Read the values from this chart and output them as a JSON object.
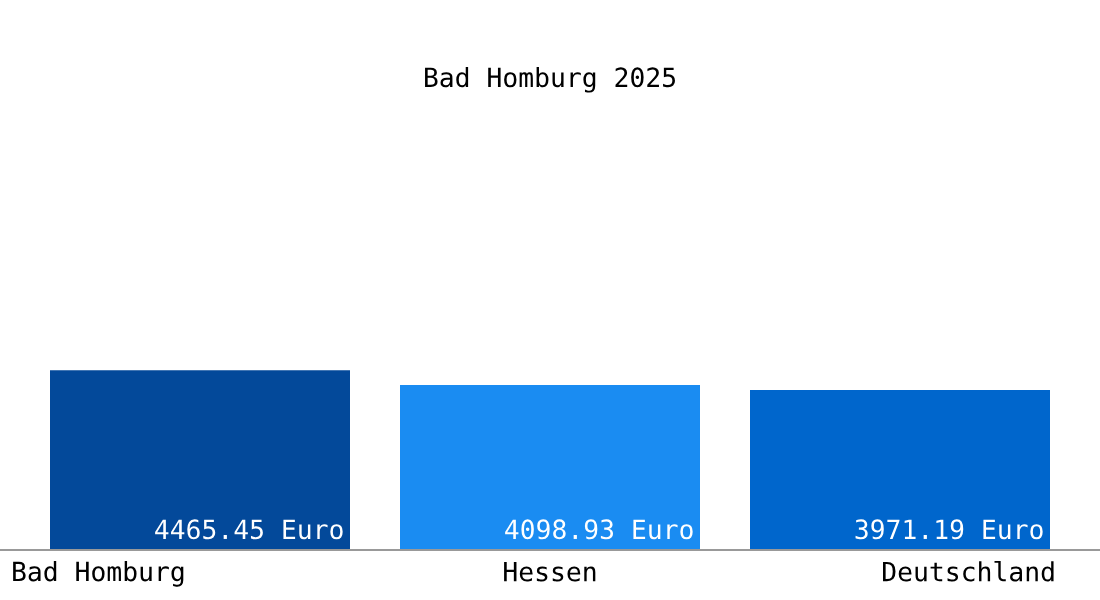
{
  "chart_data": {
    "type": "bar",
    "title": "Bad Homburg 2025",
    "categories": [
      "Bad Homburg",
      "Hessen",
      "Deutschland"
    ],
    "values": [
      4465.45,
      4098.93,
      3971.19
    ],
    "colors": [
      "#03499a",
      "#1a8cf2",
      "#0066cc"
    ],
    "value_labels": [
      "4465.45 Euro",
      "4098.93 Euro",
      "3971.19 Euro"
    ]
  }
}
